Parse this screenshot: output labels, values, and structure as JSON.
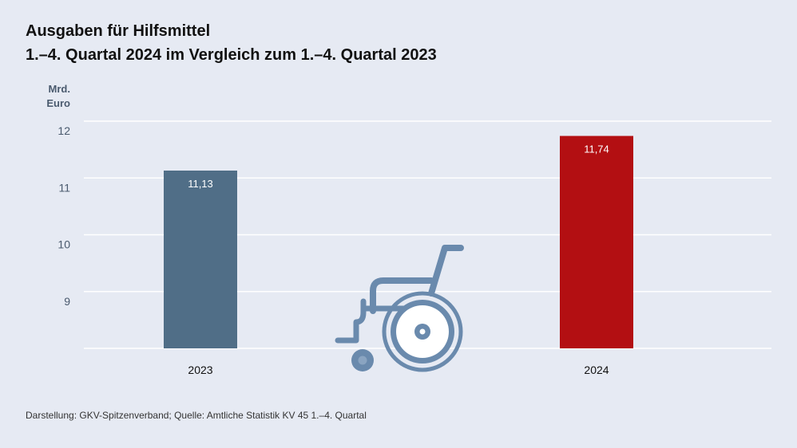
{
  "title_line1": "Ausgaben für Hilfsmittel",
  "title_line2": "1.–4. Quartal 2024 im Vergleich zum 1.–4. Quartal 2023",
  "unit_line1": "Mrd.",
  "unit_line2": "Euro",
  "source": "Darstellung: GKV-Spitzenverband; Quelle: Amtliche Statistik KV 45 1.–4. Quartal",
  "icon": "wheelchair-icon",
  "colors": {
    "bar_2023": "#506e87",
    "bar_2024": "#b30f12",
    "grid": "#ffffff",
    "icon": "#6a8aad"
  },
  "chart_data": {
    "type": "bar",
    "categories": [
      "2023",
      "2024"
    ],
    "values": [
      11.13,
      11.74
    ],
    "value_labels": [
      "11,13",
      "11,74"
    ],
    "yticks": [
      9,
      10,
      11,
      12
    ],
    "ylim": [
      8,
      12
    ],
    "ylabel": "Mrd. Euro",
    "xlabel": "",
    "grid": true
  }
}
